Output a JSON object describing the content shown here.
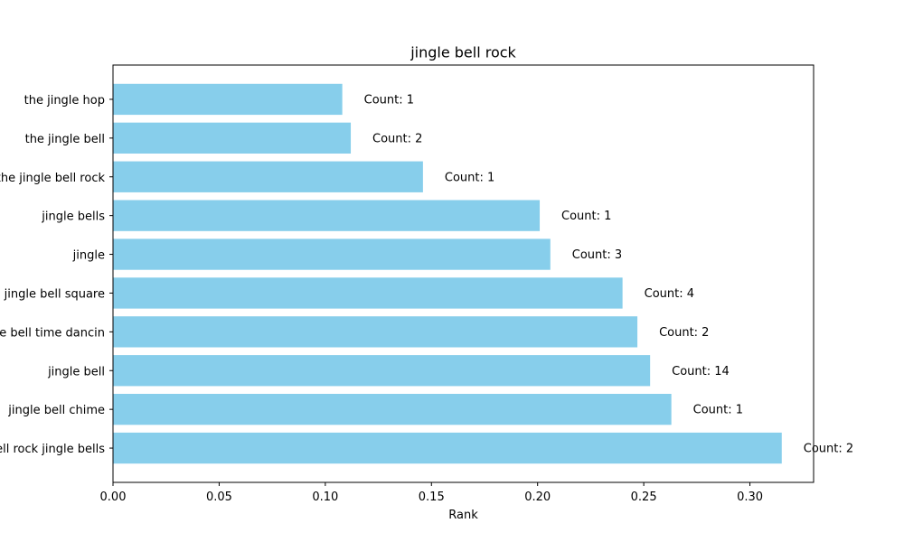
{
  "chart_data": {
    "type": "bar",
    "orientation": "horizontal",
    "title": "jingle bell rock",
    "xlabel": "Rank",
    "ylabel": "",
    "xlim": [
      0,
      0.33
    ],
    "xticks": [
      "0.00",
      "0.05",
      "0.10",
      "0.15",
      "0.20",
      "0.25",
      "0.30"
    ],
    "grid": false,
    "bar_color": "#87ceeb",
    "categories": [
      "the jingle hop",
      "the jingle bell",
      "the jingle bell rock",
      "jingle bells",
      "jingle",
      "jingle bell square",
      "jingle bell time dancin",
      "jingle bell",
      "jingle bell chime",
      "jingle bell rock jingle bells"
    ],
    "values": [
      0.108,
      0.112,
      0.146,
      0.201,
      0.206,
      0.24,
      0.247,
      0.253,
      0.263,
      0.315
    ],
    "bar_labels": [
      "Count: 1",
      "Count: 2",
      "Count: 1",
      "Count: 1",
      "Count: 3",
      "Count: 4",
      "Count: 2",
      "Count: 14",
      "Count: 1",
      "Count: 2"
    ]
  }
}
